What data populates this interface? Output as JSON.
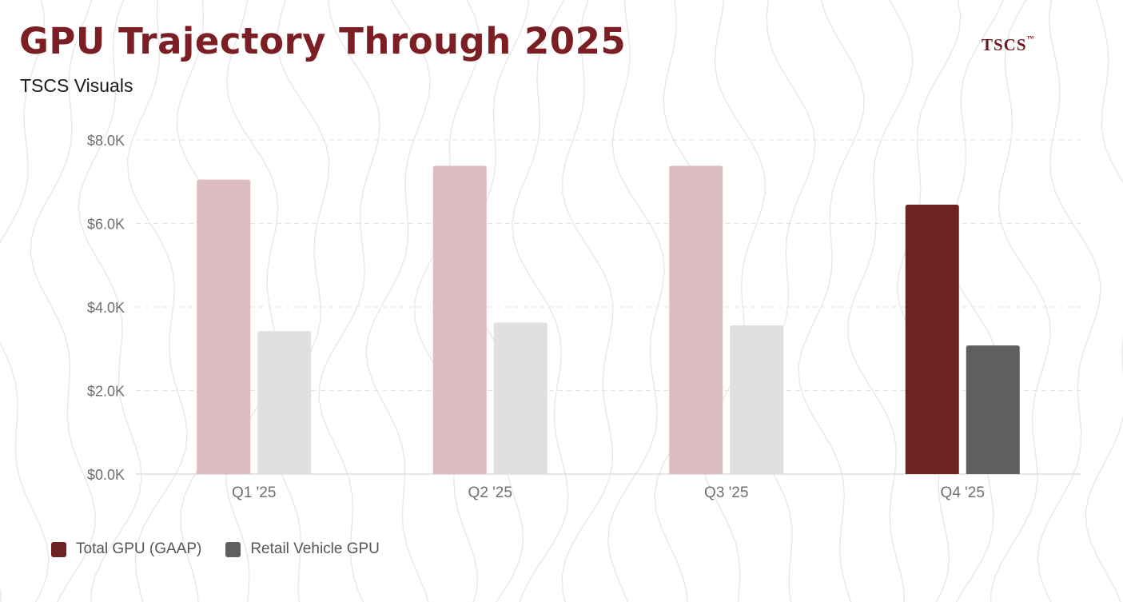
{
  "header": {
    "title": "GPU Trajectory Through 2025",
    "subtitle": "TSCS Visuals",
    "brand": "TSCS",
    "brand_mark": "™"
  },
  "colors": {
    "title": "#7b1f24",
    "brand": "#6e1a1f",
    "total_active": "#6b2324",
    "total_muted": "#dcbcc0",
    "retail_active": "#5f5f5f",
    "retail_muted": "#e0e0e0",
    "axis_text": "#6f6f6f",
    "grid": "#e3e3e3",
    "contour": "#e8e8e8"
  },
  "chart_data": {
    "type": "bar",
    "categories": [
      "Q1 '25",
      "Q2 '25",
      "Q3 '25",
      "Q4 '25"
    ],
    "series": [
      {
        "name": "Total GPU (GAAP)",
        "values": [
          7050,
          7380,
          7380,
          6450
        ]
      },
      {
        "name": "Retail Vehicle GPU",
        "values": [
          3420,
          3630,
          3560,
          3080
        ]
      }
    ],
    "highlight_category": "Q4 '25",
    "ylim": [
      0,
      8000
    ],
    "yticks": [
      "$0.0K",
      "$2.0K",
      "$4.0K",
      "$6.0K",
      "$8.0K"
    ],
    "ytick_values": [
      0,
      2000,
      4000,
      6000,
      8000
    ],
    "grid": true,
    "legend_position": "bottom-left"
  }
}
